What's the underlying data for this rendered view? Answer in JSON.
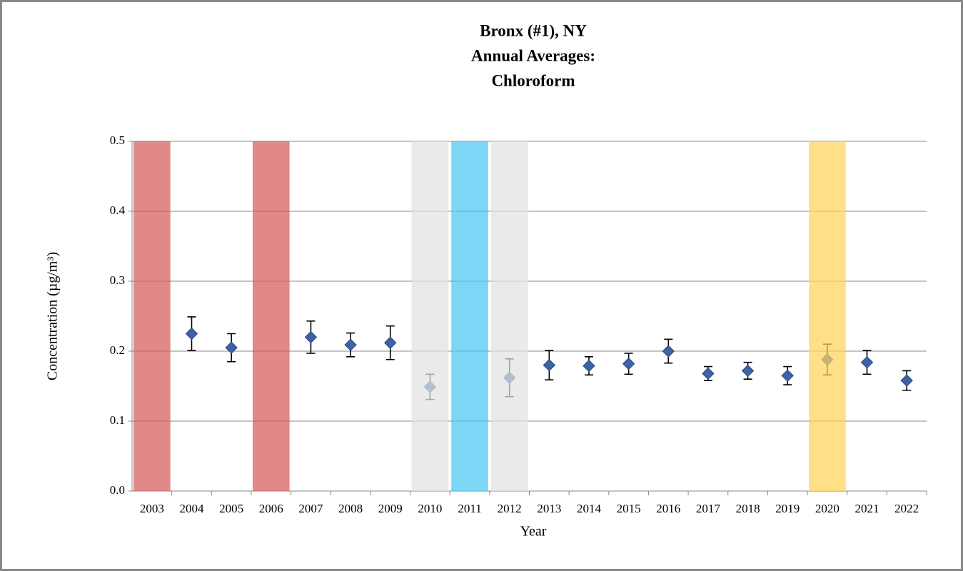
{
  "chart_data": {
    "type": "scatter",
    "title": [
      "Bronx (#1), NY",
      "Annual Averages:",
      "Chloroform"
    ],
    "x_label": "Year",
    "y_label": "Concentration (µg/m³)",
    "categories": [
      "2003",
      "2004",
      "2005",
      "2006",
      "2007",
      "2008",
      "2009",
      "2010",
      "2011",
      "2012",
      "2013",
      "2014",
      "2015",
      "2016",
      "2017",
      "2018",
      "2019",
      "2020",
      "2021",
      "2022"
    ],
    "values": [
      null,
      0.225,
      0.205,
      null,
      0.22,
      0.209,
      0.212,
      0.149,
      null,
      0.162,
      0.18,
      0.179,
      0.182,
      0.2,
      0.168,
      0.172,
      0.165,
      0.188,
      0.184,
      0.158
    ],
    "errors": [
      null,
      0.024,
      0.02,
      null,
      0.023,
      0.017,
      0.024,
      0.018,
      null,
      0.027,
      0.021,
      0.013,
      0.015,
      0.017,
      0.01,
      0.012,
      0.013,
      0.022,
      0.017,
      0.014
    ],
    "color": "#3d62a6",
    "error_color": "#000000",
    "band_colors": [
      "#d65a5a",
      null,
      null,
      "#d65a5a",
      null,
      null,
      null,
      "#e2e2e2",
      "#4cc6f2",
      "#e2e2e2",
      null,
      null,
      null,
      null,
      null,
      null,
      null,
      "#ffd45a",
      null,
      null
    ],
    "ylim": [
      0,
      0.5
    ],
    "yticks": [
      {
        "value": 0,
        "label": "0.0"
      },
      0.1,
      0.2,
      0.3,
      0.4,
      0.5
    ],
    "grid": true
  }
}
